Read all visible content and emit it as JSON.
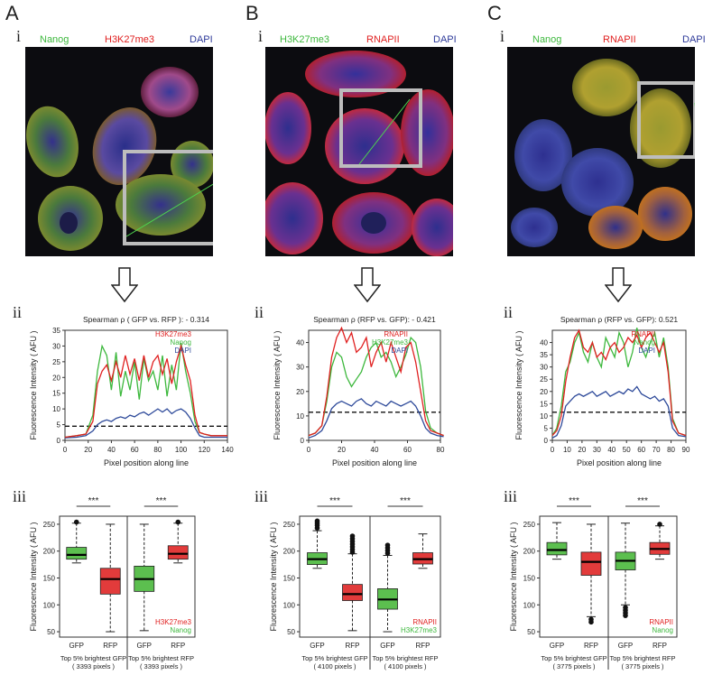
{
  "panels": [
    {
      "letter": "A",
      "sub_i": "i",
      "sub_ii": "ii",
      "sub_iii": "iii",
      "channels": [
        {
          "label": "Nanog",
          "color": "#3db83d"
        },
        {
          "label": "H3K27me3",
          "color": "#e02020"
        },
        {
          "label": "DAPI",
          "color": "#2e3a9a"
        }
      ]
    },
    {
      "letter": "B",
      "sub_i": "i",
      "sub_ii": "ii",
      "sub_iii": "iii",
      "channels": [
        {
          "label": "H3K27me3",
          "color": "#3db83d"
        },
        {
          "label": "RNAPII",
          "color": "#e02020"
        },
        {
          "label": "DAPI",
          "color": "#2e3a9a"
        }
      ]
    },
    {
      "letter": "C",
      "sub_i": "i",
      "sub_ii": "ii",
      "sub_iii": "iii",
      "channels": [
        {
          "label": "Nanog",
          "color": "#3db83d"
        },
        {
          "label": "RNAPII",
          "color": "#e02020"
        },
        {
          "label": "DAPI",
          "color": "#2e3a9a"
        }
      ]
    }
  ],
  "colors": {
    "green": "#3db83d",
    "red": "#e02020",
    "blue": "#2e4a9a",
    "box_green": "#5cbf4f",
    "box_red": "#e23b3b"
  },
  "chart_data": [
    {
      "type": "line",
      "title": "Spearman ρ ( GFP vs. RFP ):  - 0.314",
      "xlabel": "Pixel position along line",
      "ylabel": "Fluorescence Intensity ( AFU )",
      "xlim": [
        0,
        140
      ],
      "ylim": [
        0,
        35
      ],
      "xticks": [
        0,
        20,
        40,
        60,
        80,
        100,
        120,
        140
      ],
      "yticks": [
        0,
        5,
        10,
        15,
        20,
        25,
        30,
        35
      ],
      "threshold": 4.5,
      "legend": [
        "H3K27me3",
        "Nanog",
        "DAPI"
      ],
      "series": [
        {
          "name": "H3K27me3",
          "color": "#e02020",
          "x": [
            0,
            10,
            18,
            24,
            28,
            32,
            36,
            40,
            44,
            48,
            52,
            56,
            60,
            64,
            68,
            72,
            76,
            80,
            84,
            88,
            92,
            96,
            100,
            104,
            108,
            112,
            116,
            120,
            126,
            132,
            140
          ],
          "y": [
            1,
            1.5,
            2,
            6,
            18,
            22,
            24,
            19,
            25,
            20,
            27,
            21,
            26,
            19,
            27,
            20,
            25,
            27,
            21,
            26,
            18,
            25,
            30,
            24,
            19,
            8,
            2.5,
            2,
            1.5,
            1.5,
            1.5
          ]
        },
        {
          "name": "Nanog",
          "color": "#3db83d",
          "x": [
            0,
            10,
            18,
            24,
            28,
            32,
            36,
            40,
            44,
            48,
            52,
            56,
            60,
            64,
            68,
            72,
            76,
            80,
            84,
            88,
            92,
            96,
            100,
            104,
            108,
            112,
            116,
            120,
            126,
            132,
            140
          ],
          "y": [
            1,
            1.5,
            2,
            8,
            22,
            30,
            27,
            16,
            28,
            14,
            22,
            16,
            25,
            13,
            26,
            19,
            22,
            16,
            27,
            14,
            24,
            16,
            31,
            22,
            15,
            6,
            2.5,
            2,
            1.5,
            1.5,
            1.5
          ]
        },
        {
          "name": "DAPI",
          "color": "#2e4a9a",
          "x": [
            0,
            10,
            18,
            24,
            28,
            32,
            36,
            40,
            44,
            48,
            52,
            56,
            60,
            64,
            68,
            72,
            76,
            80,
            84,
            88,
            92,
            96,
            100,
            104,
            108,
            112,
            116,
            120,
            126,
            132,
            140
          ],
          "y": [
            0.8,
            1,
            1.5,
            3,
            5,
            6,
            6.5,
            6,
            7,
            7.5,
            7,
            8,
            7.5,
            8.5,
            9,
            8,
            9,
            10,
            9,
            10,
            8.5,
            9.5,
            10,
            9,
            7,
            4,
            1.5,
            1,
            1,
            1,
            1
          ]
        }
      ]
    },
    {
      "type": "line",
      "title": "Spearman ρ (RFP vs. GFP):  - 0.421",
      "xlabel": "Pixel position along line",
      "ylabel": "Fluorescence Intensity ( AFU )",
      "xlim": [
        0,
        80
      ],
      "ylim": [
        0,
        45
      ],
      "xticks": [
        0,
        20,
        40,
        60,
        80
      ],
      "yticks": [
        0,
        10,
        20,
        30,
        40
      ],
      "threshold": 11.5,
      "legend": [
        "RNAPII",
        "H3K27me3",
        "DAPI"
      ],
      "series": [
        {
          "name": "RNAPII",
          "color": "#e02020",
          "x": [
            0,
            4,
            8,
            11,
            14,
            17,
            20,
            23,
            26,
            29,
            32,
            35,
            38,
            41,
            44,
            47,
            50,
            53,
            56,
            59,
            62,
            65,
            68,
            71,
            74,
            78,
            82
          ],
          "y": [
            2,
            3,
            6,
            18,
            34,
            42,
            46,
            40,
            44,
            36,
            38,
            42,
            30,
            36,
            40,
            32,
            40,
            34,
            28,
            38,
            40,
            32,
            20,
            8,
            4,
            3,
            2
          ]
        },
        {
          "name": "H3K27me3",
          "color": "#3db83d",
          "x": [
            0,
            4,
            8,
            11,
            14,
            17,
            20,
            23,
            26,
            29,
            32,
            35,
            38,
            41,
            44,
            47,
            50,
            53,
            56,
            59,
            62,
            65,
            68,
            71,
            74,
            78,
            82
          ],
          "y": [
            2,
            3,
            6,
            16,
            30,
            36,
            34,
            26,
            22,
            25,
            28,
            34,
            38,
            40,
            34,
            36,
            32,
            26,
            30,
            35,
            42,
            40,
            30,
            12,
            5,
            3,
            2
          ]
        },
        {
          "name": "DAPI",
          "color": "#2e4a9a",
          "x": [
            0,
            4,
            8,
            11,
            14,
            17,
            20,
            23,
            26,
            29,
            32,
            35,
            38,
            41,
            44,
            47,
            50,
            53,
            56,
            59,
            62,
            65,
            68,
            71,
            74,
            78,
            82
          ],
          "y": [
            1,
            2,
            4,
            8,
            13,
            15,
            16,
            15,
            14,
            16,
            17,
            15,
            14,
            16,
            15,
            14,
            16,
            15,
            14,
            15,
            16,
            14,
            10,
            5,
            3,
            2,
            1.5
          ]
        }
      ]
    },
    {
      "type": "line",
      "title": "Spearman ρ (RFP vs. GFP):  0.521",
      "xlabel": "Pixel position along line",
      "ylabel": "Fluorescence Intensity ( AFU )",
      "xlim": [
        0,
        90
      ],
      "ylim": [
        0,
        45
      ],
      "xticks": [
        0,
        10,
        20,
        30,
        40,
        50,
        60,
        70,
        80,
        90
      ],
      "yticks": [
        0,
        5,
        10,
        15,
        20,
        25,
        30,
        35,
        40
      ],
      "threshold": 11.5,
      "legend": [
        "RNAPII",
        "Nanog",
        "DAPI"
      ],
      "series": [
        {
          "name": "RNAPII",
          "color": "#e02020",
          "x": [
            0,
            3,
            6,
            9,
            12,
            15,
            18,
            21,
            24,
            27,
            30,
            33,
            36,
            39,
            42,
            45,
            48,
            51,
            54,
            57,
            60,
            63,
            66,
            69,
            72,
            75,
            78,
            81,
            85,
            90
          ],
          "y": [
            2,
            4,
            10,
            24,
            34,
            42,
            45,
            38,
            36,
            40,
            34,
            36,
            33,
            38,
            40,
            36,
            38,
            42,
            40,
            43,
            38,
            42,
            44,
            40,
            36,
            40,
            28,
            8,
            3,
            2
          ]
        },
        {
          "name": "Nanog",
          "color": "#3db83d",
          "x": [
            0,
            3,
            6,
            9,
            12,
            15,
            18,
            21,
            24,
            27,
            30,
            33,
            36,
            39,
            42,
            45,
            48,
            51,
            54,
            57,
            60,
            63,
            66,
            69,
            72,
            75,
            78,
            81,
            85,
            90
          ],
          "y": [
            2,
            5,
            14,
            28,
            32,
            40,
            44,
            36,
            32,
            40,
            34,
            30,
            42,
            38,
            34,
            44,
            40,
            30,
            36,
            46,
            38,
            34,
            40,
            44,
            34,
            42,
            30,
            9,
            3,
            2
          ]
        },
        {
          "name": "DAPI",
          "color": "#2e4a9a",
          "x": [
            0,
            3,
            6,
            9,
            12,
            15,
            18,
            21,
            24,
            27,
            30,
            33,
            36,
            39,
            42,
            45,
            48,
            51,
            54,
            57,
            60,
            63,
            66,
            69,
            72,
            75,
            78,
            81,
            85,
            90
          ],
          "y": [
            1,
            2,
            6,
            14,
            16,
            18,
            19,
            18,
            19,
            20,
            18,
            19,
            20,
            18,
            19,
            20,
            19,
            21,
            20,
            22,
            19,
            18,
            17,
            18,
            16,
            17,
            14,
            5,
            2,
            1.5
          ]
        }
      ]
    },
    {
      "type": "box",
      "ylabel": "Fluorescence Intensity ( AFU )",
      "ylim": [
        40,
        265
      ],
      "yticks": [
        50,
        100,
        150,
        200,
        250
      ],
      "categories": [
        "GFP",
        "RFP",
        "GFP",
        "RFP"
      ],
      "groups": [
        {
          "label": "Top 5% brightest GFP",
          "pixels": "( 3393 pixels )"
        },
        {
          "label": "Top 5% brightest RFP",
          "pixels": "( 3393 pixels )"
        }
      ],
      "significance": [
        "***",
        "***"
      ],
      "legend": [
        "H3K27me3",
        "Nanog"
      ],
      "boxes": [
        {
          "color": "green",
          "min": 178,
          "q1": 185,
          "median": 193,
          "q3": 207,
          "max": 252,
          "outliers": [
            254
          ]
        },
        {
          "color": "red",
          "min": 50,
          "q1": 120,
          "median": 148,
          "q3": 168,
          "max": 250,
          "outliers": []
        },
        {
          "color": "green",
          "min": 52,
          "q1": 125,
          "median": 148,
          "q3": 172,
          "max": 250,
          "outliers": []
        },
        {
          "color": "red",
          "min": 178,
          "q1": 185,
          "median": 195,
          "q3": 210,
          "max": 252,
          "outliers": [
            254
          ]
        }
      ]
    },
    {
      "type": "box",
      "ylabel": "Fluorescence Intensity ( AFU )",
      "ylim": [
        40,
        265
      ],
      "yticks": [
        50,
        100,
        150,
        200,
        250
      ],
      "categories": [
        "GFP",
        "RFP",
        "GFP",
        "RFP"
      ],
      "groups": [
        {
          "label": "Top 5% brightest GFP",
          "pixels": "( 4100 pixels )"
        },
        {
          "label": "Top 5% brightest RFP",
          "pixels": "( 4100 pixels )"
        }
      ],
      "significance": [
        "***",
        "***"
      ],
      "legend": [
        "RNAPII",
        "H3K27me3"
      ],
      "boxes": [
        {
          "color": "green",
          "min": 168,
          "q1": 175,
          "median": 185,
          "q3": 197,
          "max": 238,
          "outliers": [
            243,
            248,
            252,
            256
          ]
        },
        {
          "color": "red",
          "min": 52,
          "q1": 108,
          "median": 120,
          "q3": 138,
          "max": 195,
          "outliers": [
            198,
            203,
            208,
            213,
            218,
            223,
            228
          ]
        },
        {
          "color": "green",
          "min": 50,
          "q1": 92,
          "median": 110,
          "q3": 130,
          "max": 192,
          "outliers": [
            196,
            201,
            206,
            211
          ]
        },
        {
          "color": "red",
          "min": 168,
          "q1": 176,
          "median": 185,
          "q3": 197,
          "max": 232,
          "outliers": []
        }
      ]
    },
    {
      "type": "box",
      "ylabel": "Fluorescence Intensity ( AFU )",
      "ylim": [
        40,
        265
      ],
      "yticks": [
        50,
        100,
        150,
        200,
        250
      ],
      "categories": [
        "GFP",
        "RFP",
        "GFP",
        "RFP"
      ],
      "groups": [
        {
          "label": "Top 5% brightest GFP",
          "pixels": "( 3775 pixels )"
        },
        {
          "label": "Top 5% brightest RFP",
          "pixels": "( 3775 pixels )"
        }
      ],
      "significance": [
        "***",
        "***"
      ],
      "legend": [
        "RNAPII",
        "Nanog"
      ],
      "boxes": [
        {
          "color": "green",
          "min": 185,
          "q1": 193,
          "median": 202,
          "q3": 216,
          "max": 253,
          "outliers": []
        },
        {
          "color": "red",
          "min": 78,
          "q1": 155,
          "median": 180,
          "q3": 198,
          "max": 250,
          "outliers": [
            73,
            68
          ]
        },
        {
          "color": "green",
          "min": 100,
          "q1": 165,
          "median": 182,
          "q3": 198,
          "max": 252,
          "outliers": [
            95,
            90,
            85,
            80
          ]
        },
        {
          "color": "red",
          "min": 185,
          "q1": 194,
          "median": 204,
          "q3": 216,
          "max": 247,
          "outliers": [
            250
          ]
        }
      ]
    }
  ]
}
